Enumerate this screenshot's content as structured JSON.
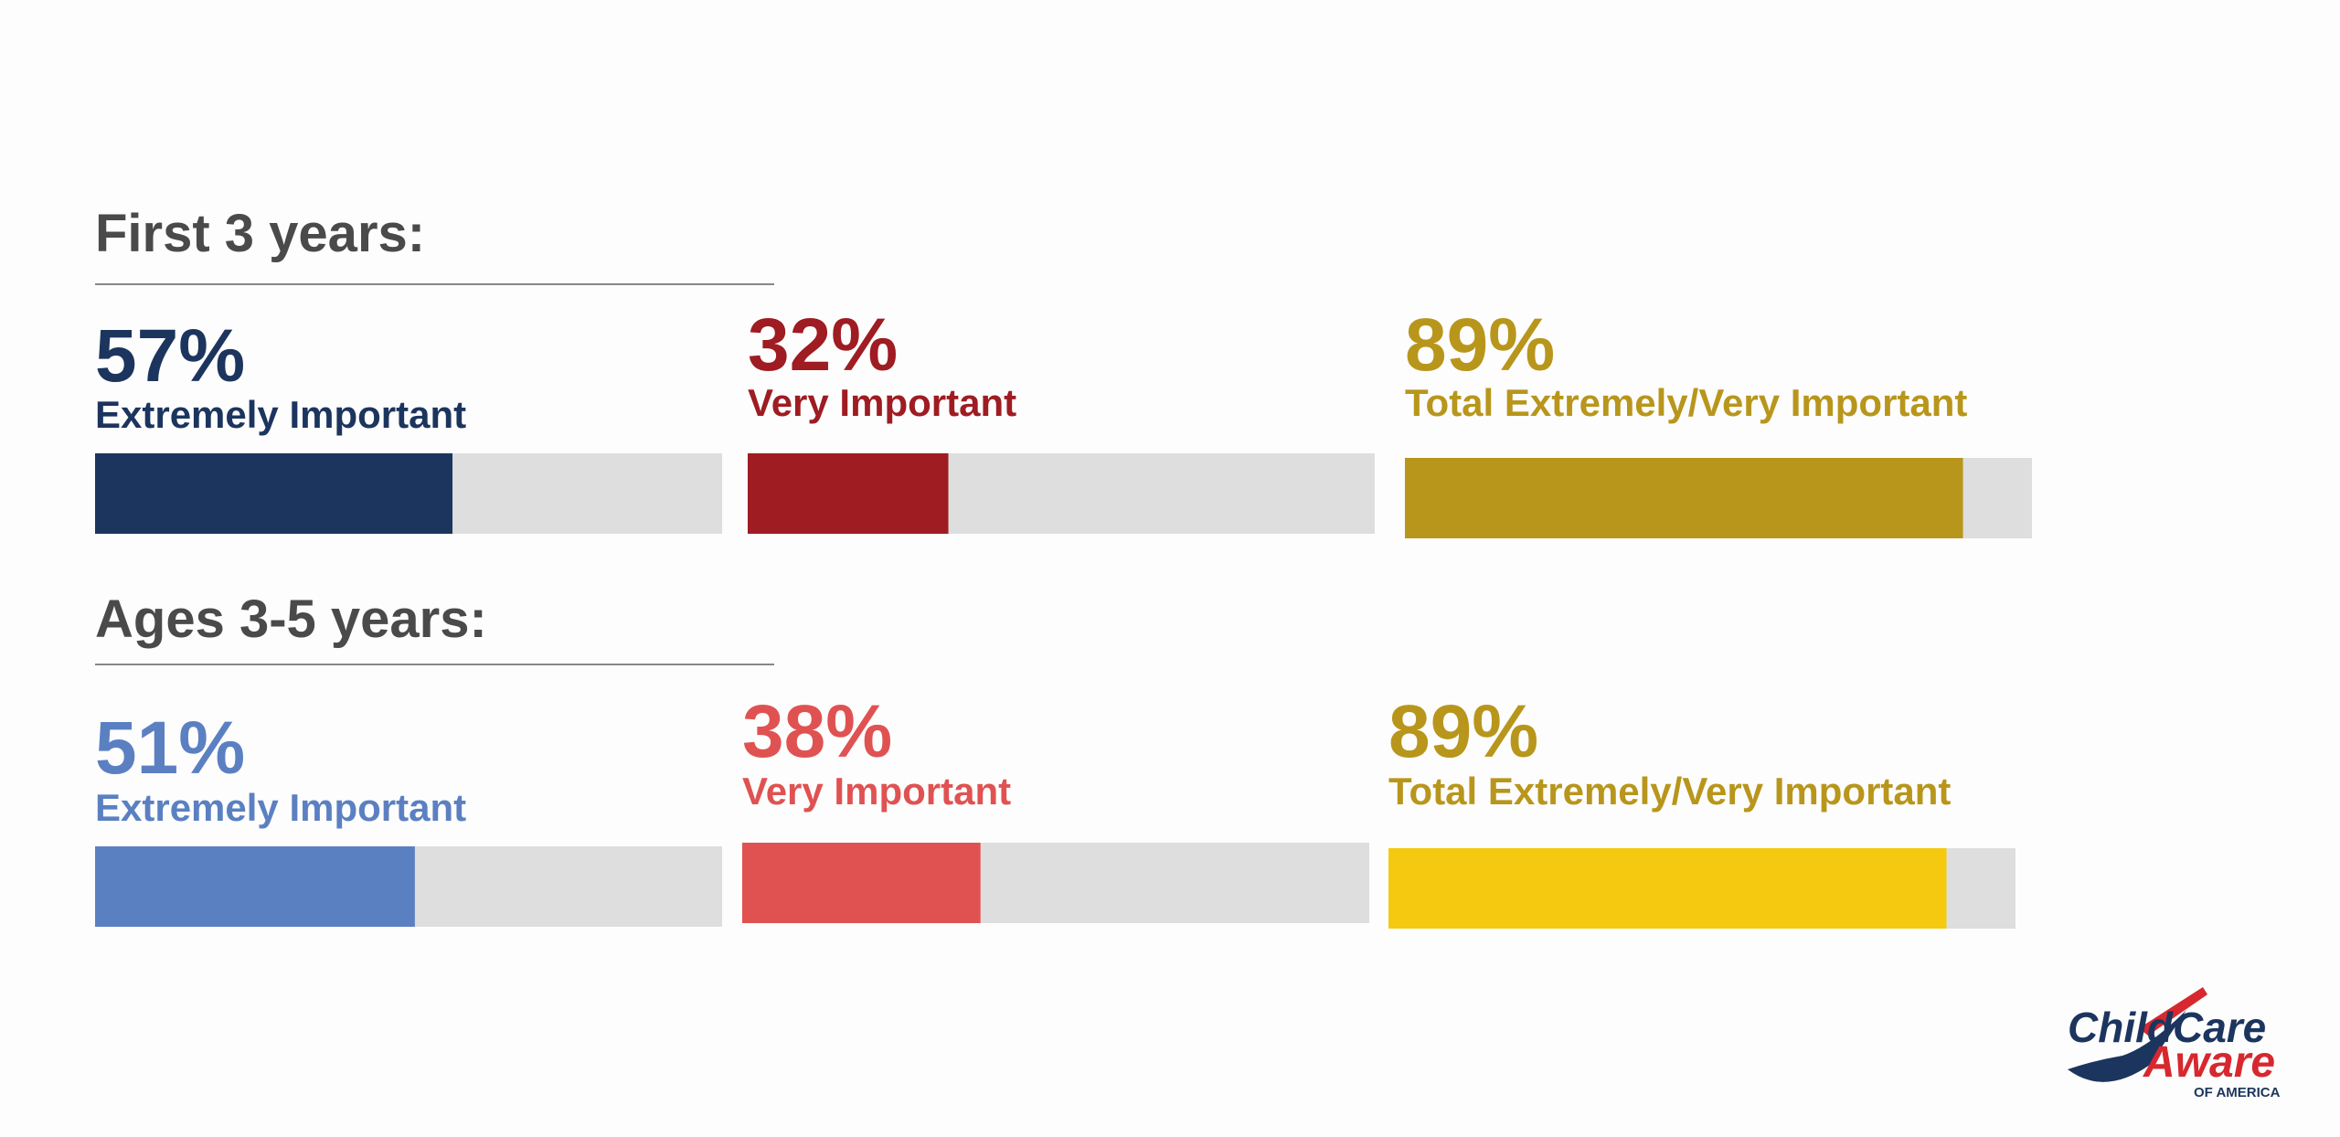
{
  "chart_data": [
    {
      "type": "progress",
      "title": "First 3 years:",
      "categories": [
        "Extremely Important",
        "Very Important",
        "Total Extremely/Very Important"
      ],
      "values": [
        57,
        32,
        89
      ],
      "value_labels": [
        "57%",
        "32%",
        "89%"
      ],
      "colors": [
        "#1c355e",
        "#9e1c22",
        "#b8961c"
      ],
      "text_colors": [
        "#1c355e",
        "#9e1c22",
        "#b8961c"
      ],
      "track_color": "#dedede",
      "xlim": [
        0,
        100
      ]
    },
    {
      "type": "progress",
      "title": "Ages 3-5 years:",
      "categories": [
        "Extremely Important",
        "Very Important",
        "Total Extremely/Very Important"
      ],
      "values": [
        51,
        38,
        89
      ],
      "value_labels": [
        "51%",
        "38%",
        "89%"
      ],
      "colors": [
        "#5b80c2",
        "#e05252",
        "#f5c90f"
      ],
      "text_colors": [
        "#5b80c2",
        "#e05252",
        "#b8961c"
      ],
      "track_color": "#dedede",
      "xlim": [
        0,
        100
      ]
    }
  ],
  "logo": {
    "word1": "ChildCare",
    "word2": "Aware",
    "sub": "OF AMERICA"
  }
}
